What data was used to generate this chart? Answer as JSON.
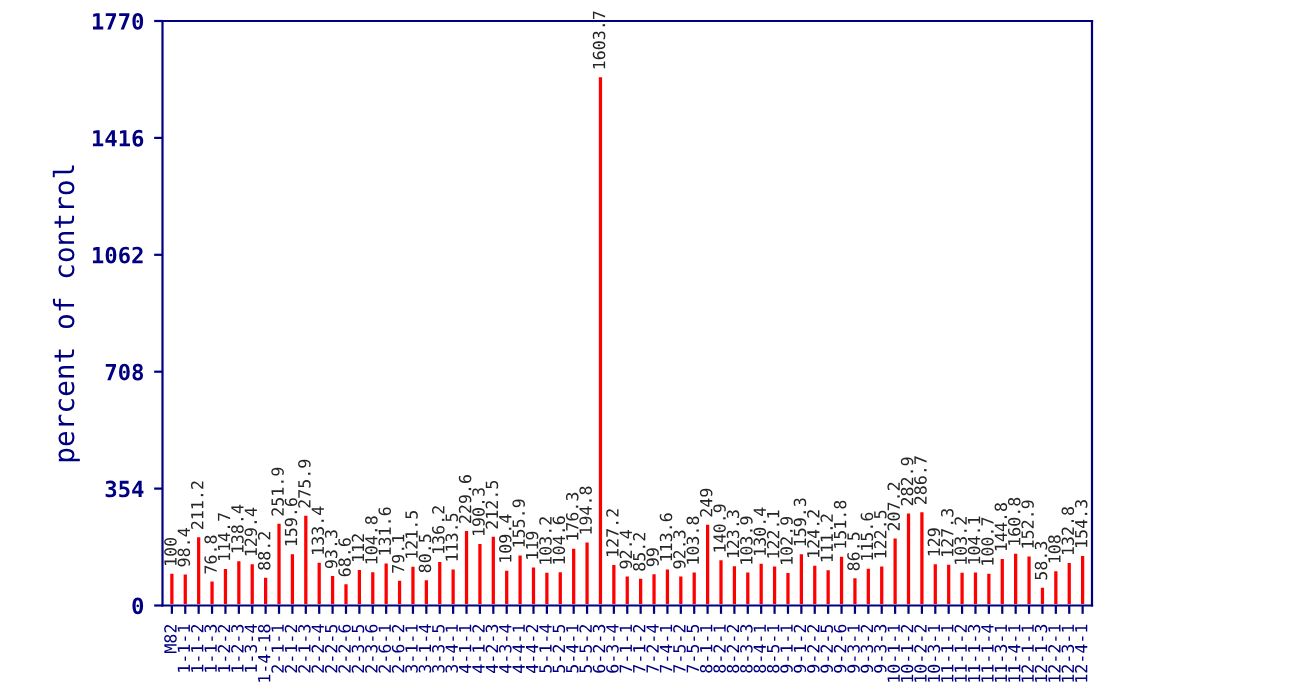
{
  "chart_data": {
    "type": "bar",
    "ylabel": "percent of control",
    "categories": [
      "M82",
      "1-1-1",
      "1-1-2",
      "1-1-3",
      "1-2-2",
      "1-2-3",
      "1-3-4",
      "1-4-18",
      "2-1-1",
      "2-1-2",
      "2-1-3",
      "2-2-4",
      "2-2-5",
      "2-2-6",
      "2-3-5",
      "2-3-6",
      "2-6-1",
      "2-6-2",
      "3-1-1",
      "3-1-4",
      "3-3-5",
      "3-4-1",
      "4-1-1",
      "4-1-2",
      "4-2-3",
      "4-3-4",
      "4-4-1",
      "4-4-2",
      "5-1-4",
      "5-2-5",
      "5-4-1",
      "5-5-2",
      "6-2-3",
      "6-3-4",
      "7-1-1",
      "7-1-2",
      "7-2-4",
      "7-4-1",
      "7-5-2",
      "7-5-5",
      "8-1-1",
      "8-2-1",
      "8-2-2",
      "8-3-3",
      "8-4-1",
      "8-5-1",
      "9-1-1",
      "9-1-2",
      "9-2-2",
      "9-2-5",
      "9-2-6",
      "9-3-1",
      "9-3-2",
      "9-3-3",
      "10-1-1",
      "10-1-2",
      "10-2-2",
      "10-3-1",
      "11-1-1",
      "11-1-2",
      "11-1-3",
      "11-1-4",
      "11-3-1",
      "11-4-1",
      "12-1-1",
      "12-1-3",
      "12-2-1",
      "12-3-1",
      "12-4-1"
    ],
    "values": [
      100,
      98.4,
      211.2,
      76.8,
      114.7,
      138.4,
      129.4,
      88.2,
      251.9,
      159.6,
      275.9,
      133.4,
      93.3,
      68.6,
      112,
      104.8,
      131.6,
      79.1,
      121.5,
      80.5,
      136.2,
      113.5,
      229.6,
      190.3,
      212.5,
      109.4,
      155.9,
      119,
      103.2,
      104.6,
      176.3,
      194.8,
      1603.7,
      127.2,
      92.4,
      85.2,
      99,
      113.6,
      92.3,
      103.8,
      249,
      140.9,
      123.3,
      103.9,
      130.4,
      122.1,
      102.9,
      159.3,
      124.2,
      111.2,
      151.8,
      86.5,
      115.6,
      122.5,
      207.2,
      282.9,
      286.7,
      129,
      127.3,
      103.2,
      104.1,
      100.7,
      144.8,
      160.8,
      152.9,
      58.3,
      108,
      132.8,
      154.3
    ],
    "color": "#ff0000",
    "ylim": [
      0,
      1770
    ],
    "yticks": [
      0,
      354,
      708,
      1062,
      1416,
      1770
    ],
    "data_labels": true,
    "grid": false,
    "legend": false
  }
}
